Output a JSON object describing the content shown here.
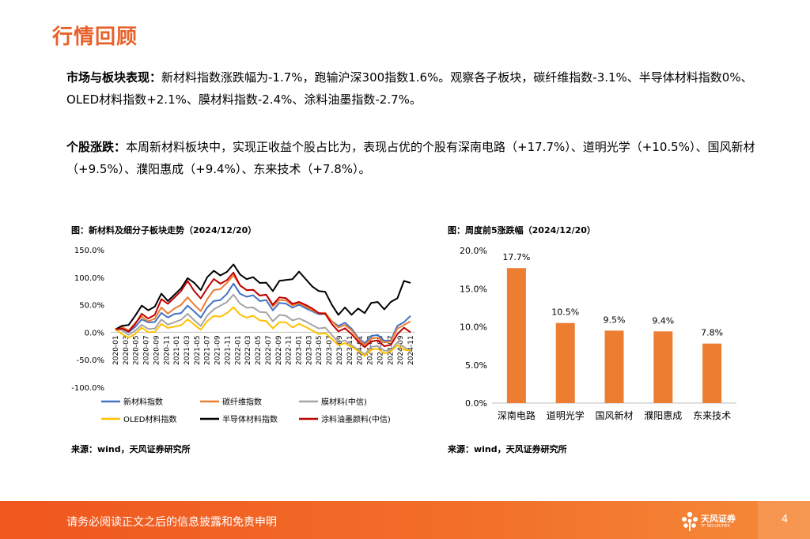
{
  "page_title": "行情回顾",
  "para1": {
    "label": "市场与板块表现：",
    "text": "新材料指数涨跌幅为-1.7%，跑输沪深300指数1.6%。观察各子板块，碳纤维指数-3.1%、半导体材料指数0%、OLED材料指数+2.1%、膜材料指数-2.4%、涂料油墨指数-2.7%。"
  },
  "para2": {
    "label": "个股涨跌：",
    "text": "本周新材料板块中，实现正收益个股占比为，表现占优的个股有深南电路（+17.7%）、道明光学（+10.5%）、国风新材（+9.5%）、濮阳惠成（+9.4%）、东来技术（+7.8%）。"
  },
  "chart_data": [
    {
      "type": "line",
      "title": "图：新材料及细分子板块走势（2024/12/20）",
      "ylim": [
        -100,
        150
      ],
      "yticks": [
        "150.0%",
        "100.0%",
        "50.0%",
        "0.0%",
        "-50.0%",
        "-100.0%"
      ],
      "x_ticks": [
        "2020-01",
        "2020-03",
        "2020-05",
        "2020-07",
        "2020-09",
        "2020-11",
        "2021-01",
        "2021-03",
        "2021-05",
        "2021-07",
        "2021-09",
        "2021-11",
        "2022-01",
        "2022-03",
        "2022-05",
        "2022-07",
        "2022-09",
        "2022-11",
        "2023-01",
        "2023-03",
        "2023-05",
        "2023-07",
        "2023-09",
        "2023-11",
        "2024-01",
        "2024-03",
        "2024-05",
        "2024-07",
        "2024-09",
        "2024-11"
      ],
      "series": [
        {
          "name": "新材料指数",
          "color": "#4472c4",
          "values": [
            0,
            5,
            2,
            15,
            20,
            18,
            22,
            30,
            25,
            35,
            40,
            45,
            38,
            30,
            40,
            55,
            60,
            75,
            85,
            70,
            68,
            62,
            55,
            60,
            45,
            50,
            52,
            48,
            45,
            42,
            40,
            38,
            30,
            20,
            15,
            12,
            5,
            -8,
            -15,
            -10,
            -5,
            -12,
            -20,
            10,
            20,
            35
          ]
        },
        {
          "name": "碳纤维指数",
          "color": "#ed7d31",
          "values": [
            0,
            8,
            5,
            22,
            25,
            20,
            28,
            40,
            32,
            45,
            55,
            60,
            50,
            42,
            55,
            75,
            80,
            95,
            100,
            85,
            80,
            72,
            65,
            70,
            52,
            55,
            58,
            52,
            48,
            45,
            42,
            40,
            32,
            20,
            12,
            8,
            2,
            -10,
            -18,
            -15,
            -10,
            -15,
            -22,
            5,
            15,
            25
          ]
        },
        {
          "name": "膜材料(中信)",
          "color": "#a5a5a5",
          "values": [
            0,
            2,
            -3,
            8,
            10,
            6,
            10,
            18,
            12,
            20,
            28,
            30,
            22,
            15,
            25,
            40,
            50,
            60,
            65,
            52,
            48,
            40,
            35,
            38,
            25,
            28,
            30,
            25,
            20,
            18,
            15,
            12,
            5,
            -5,
            -15,
            -20,
            -25,
            -30,
            -35,
            -30,
            -25,
            -30,
            -38,
            -20,
            -25,
            -30
          ]
        },
        {
          "name": "OLED材料指数",
          "color": "#ffc000",
          "values": [
            0,
            -5,
            -8,
            2,
            5,
            0,
            4,
            10,
            6,
            12,
            18,
            20,
            14,
            8,
            15,
            28,
            30,
            40,
            42,
            32,
            30,
            25,
            20,
            22,
            12,
            15,
            18,
            12,
            10,
            8,
            5,
            2,
            -5,
            -12,
            -20,
            -25,
            -28,
            -32,
            -38,
            -35,
            -30,
            -35,
            -40,
            -25,
            -30,
            -28
          ]
        },
        {
          "name": "半导体材料指数",
          "color": "#000000",
          "values": [
            0,
            10,
            15,
            35,
            45,
            40,
            50,
            65,
            55,
            70,
            85,
            95,
            90,
            80,
            95,
            110,
            105,
            115,
            120,
            105,
            100,
            95,
            88,
            92,
            80,
            90,
            95,
            100,
            105,
            95,
            85,
            80,
            70,
            50,
            35,
            40,
            30,
            45,
            40,
            50,
            55,
            45,
            50,
            60,
            95,
            95
          ]
        },
        {
          "name": "涂料油墨颜料(中信)",
          "color": "#c00000",
          "values": [
            0,
            5,
            3,
            20,
            30,
            25,
            35,
            55,
            50,
            65,
            80,
            90,
            75,
            65,
            75,
            95,
            90,
            100,
            105,
            85,
            80,
            72,
            65,
            70,
            55,
            60,
            62,
            55,
            50,
            48,
            45,
            40,
            30,
            15,
            5,
            2,
            -5,
            -15,
            -22,
            -20,
            -15,
            -22,
            -28,
            -5,
            10,
            5
          ]
        }
      ]
    },
    {
      "type": "bar",
      "title": "图：周度前5涨跌幅（2024/12/20）",
      "categories": [
        "深南电路",
        "道明光学",
        "国风新材",
        "濮阳惠成",
        "东来技术"
      ],
      "values": [
        17.7,
        10.5,
        9.5,
        9.4,
        7.8
      ],
      "labels": [
        "17.7%",
        "10.5%",
        "9.5%",
        "9.4%",
        "7.8%"
      ],
      "ylim": [
        0,
        20
      ],
      "yticks": [
        "20.0%",
        "15.0%",
        "10.0%",
        "5.0%",
        "0.0%"
      ],
      "color": "#ed7d31"
    }
  ],
  "source1": "来源：wind，天风证券研究所",
  "source2": "来源：wind，天风证券研究所",
  "footer": {
    "disclaimer": "请务必阅读正文之后的信息披露和免责申明",
    "logo_text": "天风证券",
    "logo_sub": "TF SECURITIES",
    "page_number": "4"
  },
  "colors": {
    "accent": "#e8602a",
    "footer": "#f0561e"
  }
}
